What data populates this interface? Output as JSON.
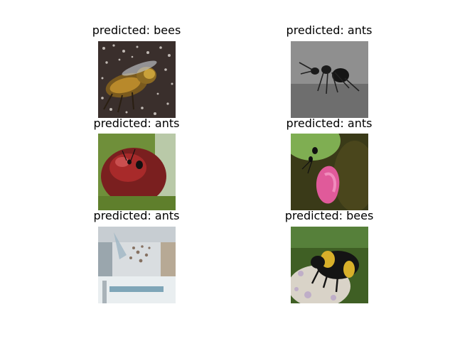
{
  "panels": [
    {
      "caption": "predicted: bees",
      "subject": "bee-on-speckled-surface"
    },
    {
      "caption": "predicted: ants",
      "subject": "ant-on-gray-ground"
    },
    {
      "caption": "predicted: ants",
      "subject": "ant-on-red-fruit"
    },
    {
      "caption": "predicted: ants",
      "subject": "ant-on-pink-petal"
    },
    {
      "caption": "predicted: ants",
      "subject": "building-interior-with-sign"
    },
    {
      "caption": "predicted: bees",
      "subject": "bumblebee-on-flower"
    }
  ],
  "colors": {
    "background": "#ffffff",
    "text": "#000000"
  }
}
